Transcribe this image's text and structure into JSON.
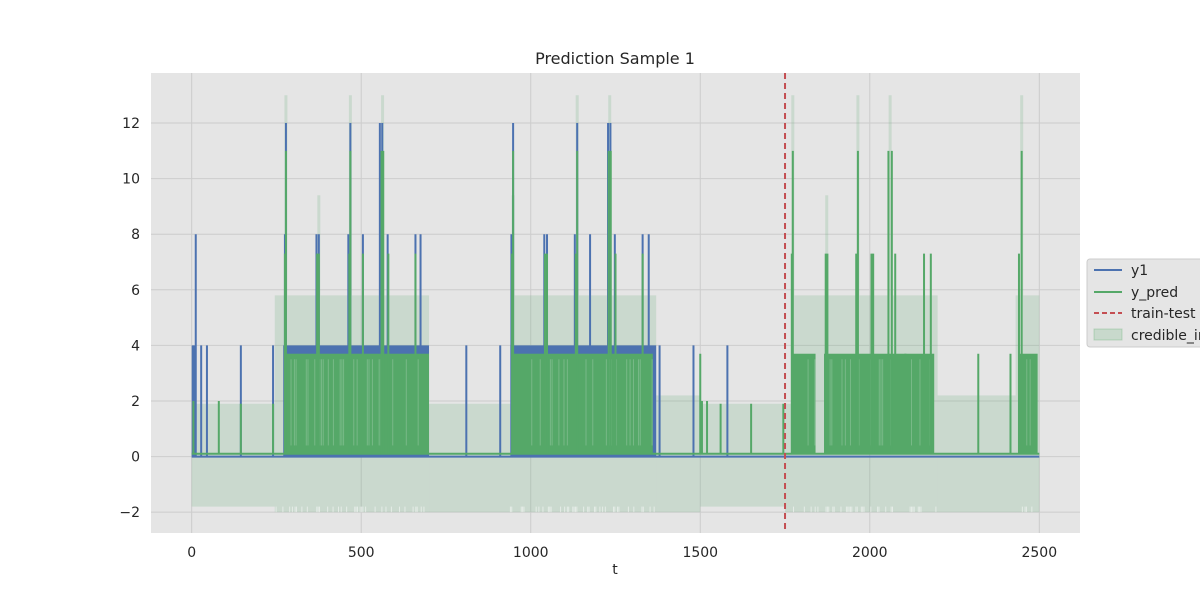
{
  "chart_data": {
    "type": "line",
    "title": "Prediction Sample 1",
    "xlabel": "t",
    "ylabel": "",
    "xlim": [
      -120,
      2620
    ],
    "ylim": [
      -2.75,
      13.8
    ],
    "xticks": [
      0,
      500,
      1000,
      1500,
      2000,
      2500
    ],
    "yticks": [
      -2,
      0,
      2,
      4,
      6,
      8,
      10,
      12
    ],
    "ytick_labels": [
      "−2",
      "0",
      "2",
      "4",
      "6",
      "8",
      "10",
      "12"
    ],
    "grid": true,
    "legend_position": "outside-right",
    "train_test_split": 1750,
    "x_range": [
      0,
      2500
    ],
    "series": [
      {
        "name": "y1",
        "kind": "line",
        "color": "#4c72b0",
        "dense_ranges": [
          {
            "x": [
              270,
              700
            ],
            "low": 0,
            "high": 4
          },
          {
            "x": [
              940,
              1370
            ],
            "low": 0,
            "high": 4
          }
        ],
        "spikes": [
          {
            "x": 3,
            "y": 4
          },
          {
            "x": 8,
            "y": 4
          },
          {
            "x": 12,
            "y": 8
          },
          {
            "x": 28,
            "y": 4
          },
          {
            "x": 45,
            "y": 4
          },
          {
            "x": 145,
            "y": 4
          },
          {
            "x": 240,
            "y": 4
          },
          {
            "x": 275,
            "y": 8
          },
          {
            "x": 278,
            "y": 12
          },
          {
            "x": 368,
            "y": 8
          },
          {
            "x": 375,
            "y": 8
          },
          {
            "x": 462,
            "y": 8
          },
          {
            "x": 468,
            "y": 12
          },
          {
            "x": 505,
            "y": 8
          },
          {
            "x": 555,
            "y": 12
          },
          {
            "x": 562,
            "y": 12
          },
          {
            "x": 578,
            "y": 8
          },
          {
            "x": 660,
            "y": 8
          },
          {
            "x": 675,
            "y": 8
          },
          {
            "x": 810,
            "y": 4
          },
          {
            "x": 910,
            "y": 4
          },
          {
            "x": 943,
            "y": 8
          },
          {
            "x": 948,
            "y": 12
          },
          {
            "x": 1040,
            "y": 8
          },
          {
            "x": 1048,
            "y": 8
          },
          {
            "x": 1130,
            "y": 8
          },
          {
            "x": 1137,
            "y": 12
          },
          {
            "x": 1175,
            "y": 8
          },
          {
            "x": 1228,
            "y": 12
          },
          {
            "x": 1235,
            "y": 12
          },
          {
            "x": 1248,
            "y": 8
          },
          {
            "x": 1330,
            "y": 8
          },
          {
            "x": 1348,
            "y": 8
          },
          {
            "x": 1380,
            "y": 4
          },
          {
            "x": 1480,
            "y": 4
          },
          {
            "x": 1580,
            "y": 4
          }
        ]
      },
      {
        "name": "y_pred",
        "kind": "line",
        "color": "#55a868",
        "dense_ranges": [
          {
            "x": [
              280,
              700
            ],
            "low": 0.1,
            "high": 3.7
          },
          {
            "x": [
              950,
              1360
            ],
            "low": 0.1,
            "high": 3.7
          },
          {
            "x": [
              1775,
              1840
            ],
            "low": 0.1,
            "high": 3.7
          },
          {
            "x": [
              1865,
              2190
            ],
            "low": 0.1,
            "high": 3.7
          },
          {
            "x": [
              2440,
              2495
            ],
            "low": 0.1,
            "high": 3.7
          }
        ],
        "spikes": [
          {
            "x": 5,
            "y": 2
          },
          {
            "x": 80,
            "y": 2
          },
          {
            "x": 145,
            "y": 1.9
          },
          {
            "x": 240,
            "y": 1.9
          },
          {
            "x": 275,
            "y": 7.3
          },
          {
            "x": 278,
            "y": 11
          },
          {
            "x": 370,
            "y": 7.3
          },
          {
            "x": 375,
            "y": 7.3
          },
          {
            "x": 465,
            "y": 7.3
          },
          {
            "x": 468,
            "y": 11
          },
          {
            "x": 505,
            "y": 7.3
          },
          {
            "x": 560,
            "y": 11
          },
          {
            "x": 565,
            "y": 11
          },
          {
            "x": 580,
            "y": 7.3
          },
          {
            "x": 660,
            "y": 7.3
          },
          {
            "x": 945,
            "y": 7.3
          },
          {
            "x": 948,
            "y": 11
          },
          {
            "x": 1042,
            "y": 7.3
          },
          {
            "x": 1048,
            "y": 7.3
          },
          {
            "x": 1133,
            "y": 7.3
          },
          {
            "x": 1137,
            "y": 11
          },
          {
            "x": 1230,
            "y": 11
          },
          {
            "x": 1236,
            "y": 11
          },
          {
            "x": 1250,
            "y": 7.3
          },
          {
            "x": 1330,
            "y": 7.3
          },
          {
            "x": 1500,
            "y": 3.7
          },
          {
            "x": 1505,
            "y": 2
          },
          {
            "x": 1520,
            "y": 2
          },
          {
            "x": 1560,
            "y": 1.9
          },
          {
            "x": 1650,
            "y": 1.9
          },
          {
            "x": 1745,
            "y": 1.9
          },
          {
            "x": 1770,
            "y": 7.3
          },
          {
            "x": 1773,
            "y": 11
          },
          {
            "x": 1870,
            "y": 7.3
          },
          {
            "x": 1875,
            "y": 7.3
          },
          {
            "x": 1960,
            "y": 7.3
          },
          {
            "x": 1965,
            "y": 11
          },
          {
            "x": 2005,
            "y": 7.3
          },
          {
            "x": 2010,
            "y": 7.3
          },
          {
            "x": 2055,
            "y": 11
          },
          {
            "x": 2065,
            "y": 11
          },
          {
            "x": 2075,
            "y": 7.3
          },
          {
            "x": 2105,
            "y": 3.7
          },
          {
            "x": 2160,
            "y": 7.3
          },
          {
            "x": 2180,
            "y": 7.3
          },
          {
            "x": 2320,
            "y": 3.7
          },
          {
            "x": 2415,
            "y": 3.7
          },
          {
            "x": 2440,
            "y": 7.3
          },
          {
            "x": 2448,
            "y": 11
          }
        ],
        "baseline": 0.1
      },
      {
        "name": "train-test split",
        "kind": "vline",
        "color": "#c44e52",
        "x": 1750
      },
      {
        "name": "credible_interval",
        "kind": "band",
        "color": "#55a868",
        "low": -2,
        "segments": [
          {
            "x": [
              0,
              245
            ],
            "low": -1.8,
            "high": 1.9
          },
          {
            "x": [
              245,
              700
            ],
            "low": -2,
            "high": 5.8
          },
          {
            "x": [
              700,
              940
            ],
            "low": -2,
            "high": 1.9
          },
          {
            "x": [
              940,
              1370
            ],
            "low": -2,
            "high": 5.8
          },
          {
            "x": [
              1370,
              1500
            ],
            "low": -2,
            "high": 2.2
          },
          {
            "x": [
              1500,
              1750
            ],
            "low": -1.8,
            "high": 1.9
          },
          {
            "x": [
              1750,
              1775
            ],
            "low": -2,
            "high": 1.9
          },
          {
            "x": [
              1775,
              2200
            ],
            "low": -2,
            "high": 5.8
          },
          {
            "x": [
              2200,
              2430
            ],
            "low": -2,
            "high": 2.2
          },
          {
            "x": [
              2430,
              2500
            ],
            "low": -2,
            "high": 5.8
          }
        ],
        "spikes": [
          {
            "x": 278,
            "y": 13
          },
          {
            "x": 375,
            "y": 9.4
          },
          {
            "x": 468,
            "y": 13
          },
          {
            "x": 563,
            "y": 13
          },
          {
            "x": 948,
            "y": 9.4
          },
          {
            "x": 1137,
            "y": 13
          },
          {
            "x": 1233,
            "y": 13
          },
          {
            "x": 1773,
            "y": 13
          },
          {
            "x": 1873,
            "y": 9.4
          },
          {
            "x": 1965,
            "y": 13
          },
          {
            "x": 2060,
            "y": 13
          },
          {
            "x": 2448,
            "y": 13
          }
        ]
      }
    ],
    "legend": [
      "y1",
      "y_pred",
      "train-test split",
      "credible_interval"
    ]
  }
}
